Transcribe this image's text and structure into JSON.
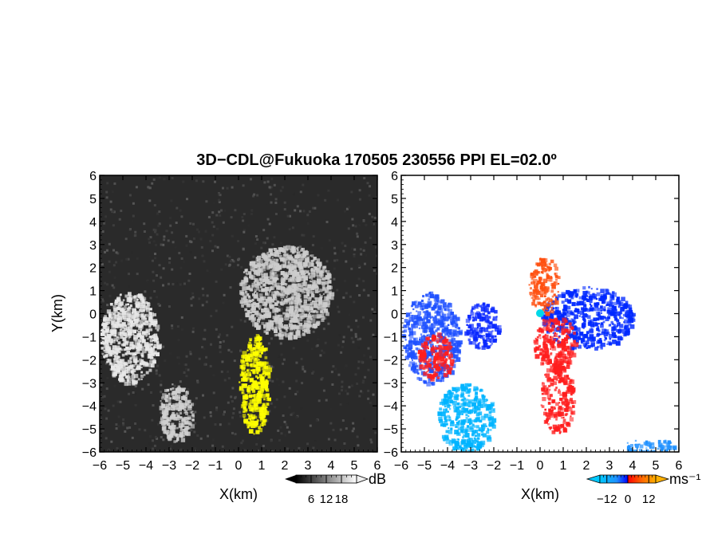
{
  "figure": {
    "title": "3D−CDL@Fukuoka 170505 230556 PPI EL=02.0º"
  },
  "chart_data": [
    {
      "type": "heatmap",
      "name": "PPI signal-to-noise ratio",
      "xlabel": "X(km)",
      "ylabel": "Y(km)",
      "xlim": [
        -6,
        6
      ],
      "ylim": [
        -6,
        6
      ],
      "xticks": [
        "−6",
        "−5",
        "−4",
        "−3",
        "−2",
        "−1",
        "0",
        "1",
        "2",
        "3",
        "4",
        "5",
        "6"
      ],
      "yticks": [
        "−6",
        "−5",
        "−4",
        "−3",
        "−2",
        "−1",
        "0",
        "1",
        "2",
        "3",
        "4",
        "5",
        "6"
      ],
      "colorbar": {
        "unit": "dB",
        "ticks": [
          "6",
          "12",
          "18"
        ],
        "tick_values": [
          6,
          12,
          18
        ],
        "range": [
          0,
          24
        ],
        "scale": "grayscale",
        "extend": "both"
      },
      "background_color": "#2a2a2a",
      "features": [
        {
          "label": "radial brightening",
          "x": [
            0,
            4
          ],
          "y": [
            -1,
            3
          ],
          "color": "#cccccc"
        },
        {
          "label": "bright echo west",
          "x": [
            -6,
            -3.5
          ],
          "y": [
            -3,
            1
          ],
          "color": "#e8e8e8"
        },
        {
          "label": "bright echo southwest",
          "x": [
            -3.5,
            -2
          ],
          "y": [
            -5.5,
            -3
          ],
          "color": "#d0d0d0"
        },
        {
          "label": "saturated streak",
          "x": [
            0,
            1.3
          ],
          "y": [
            -5.2,
            -0.8
          ],
          "color": "#ffff00"
        }
      ]
    },
    {
      "type": "heatmap",
      "name": "PPI radial velocity",
      "xlabel": "X(km)",
      "xlim": [
        -6,
        6
      ],
      "ylim": [
        -6,
        6
      ],
      "xticks": [
        "−6",
        "−5",
        "−4",
        "−3",
        "−2",
        "−1",
        "0",
        "1",
        "2",
        "3",
        "4",
        "5",
        "6"
      ],
      "yticks": [
        "−6",
        "−5",
        "−4",
        "−3",
        "−2",
        "−1",
        "0",
        "1",
        "2",
        "3",
        "4",
        "5",
        "6"
      ],
      "colorbar": {
        "unit": "ms⁻¹",
        "ticks": [
          "−12",
          "0",
          "12"
        ],
        "tick_values": [
          -12,
          0,
          12
        ],
        "range": [
          -16,
          16
        ],
        "extend": "both",
        "colors": [
          "#00c8ff",
          "#1e90ff",
          "#0000ff",
          "#ff0000",
          "#ff6600",
          "#ffb000"
        ]
      },
      "features": [
        {
          "label": "approaching cluster west",
          "x": [
            -6,
            -3.5
          ],
          "y": [
            -3,
            1
          ],
          "color": "#1e50ff"
        },
        {
          "label": "receding core west",
          "x": [
            -5.3,
            -3.8
          ],
          "y": [
            -2.8,
            -0.8
          ],
          "color": "#ff1e1e"
        },
        {
          "label": "approaching patch",
          "x": [
            -3.3,
            -1.8
          ],
          "y": [
            -1.5,
            0.5
          ],
          "color": "#0a28ff"
        },
        {
          "label": "approaching cluster east",
          "x": [
            0,
            4
          ],
          "y": [
            -1.5,
            1.2
          ],
          "color": "#0028ff"
        },
        {
          "label": "receding core center",
          "x": [
            -0.3,
            1.5
          ],
          "y": [
            -2.5,
            0
          ],
          "color": "#ff1e1e"
        },
        {
          "label": "receding plume north",
          "x": [
            -0.5,
            0.8
          ],
          "y": [
            0,
            2.5
          ],
          "color": "#ff5010"
        },
        {
          "label": "radial streak south",
          "x": [
            0,
            1.4
          ],
          "y": [
            -5.2,
            -2
          ],
          "color": "#ff1e1e"
        },
        {
          "label": "strong approach southwest",
          "x": [
            -4.5,
            -2
          ],
          "y": [
            -6,
            -3
          ],
          "color": "#00b4ff"
        },
        {
          "label": "strong approach southeast",
          "x": [
            3.5,
            6
          ],
          "y": [
            -6,
            -5.4
          ],
          "color": "#1e90ff"
        }
      ]
    }
  ]
}
